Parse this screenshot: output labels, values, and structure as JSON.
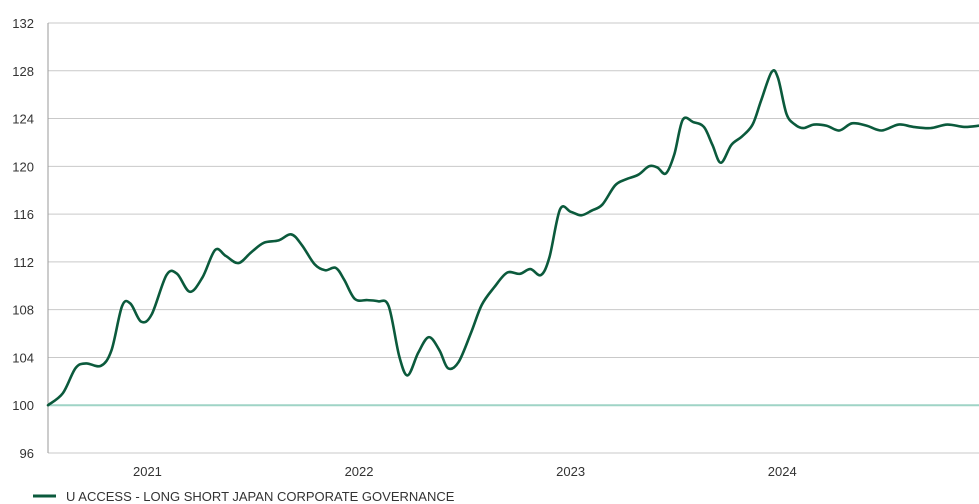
{
  "chart_data": {
    "type": "line",
    "title": "",
    "xlabel": "",
    "ylabel": "",
    "ylim": [
      96,
      132
    ],
    "y_ticks": [
      96,
      100,
      104,
      108,
      112,
      116,
      120,
      124,
      128,
      132
    ],
    "x_range": [
      2020.53,
      2024.93
    ],
    "x_ticks": [
      {
        "label": "2021",
        "value": 2021
      },
      {
        "label": "2022",
        "value": 2022
      },
      {
        "label": "2023",
        "value": 2023
      },
      {
        "label": "2024",
        "value": 2024
      }
    ],
    "grid": "horizontal",
    "legend_position": "bottom-left",
    "baseline": {
      "value": 100,
      "color": "#9fd4c6"
    },
    "series": [
      {
        "name": "U ACCESS - LONG SHORT JAPAN CORPORATE GOVERNANCE",
        "color": "#0b5a3c",
        "points": [
          [
            2020.53,
            100.0
          ],
          [
            2020.6,
            101.0
          ],
          [
            2020.66,
            103.1
          ],
          [
            2020.71,
            103.5
          ],
          [
            2020.78,
            103.3
          ],
          [
            2020.83,
            104.6
          ],
          [
            2020.88,
            108.3
          ],
          [
            2020.92,
            108.5
          ],
          [
            2020.97,
            107.0
          ],
          [
            2021.02,
            107.6
          ],
          [
            2021.09,
            110.9
          ],
          [
            2021.14,
            111.0
          ],
          [
            2021.2,
            109.5
          ],
          [
            2021.26,
            110.7
          ],
          [
            2021.32,
            113.0
          ],
          [
            2021.37,
            112.5
          ],
          [
            2021.43,
            111.9
          ],
          [
            2021.49,
            112.8
          ],
          [
            2021.55,
            113.6
          ],
          [
            2021.62,
            113.8
          ],
          [
            2021.68,
            114.3
          ],
          [
            2021.73,
            113.4
          ],
          [
            2021.79,
            111.8
          ],
          [
            2021.84,
            111.3
          ],
          [
            2021.89,
            111.5
          ],
          [
            2021.93,
            110.5
          ],
          [
            2021.98,
            108.9
          ],
          [
            2022.04,
            108.8
          ],
          [
            2022.09,
            108.7
          ],
          [
            2022.14,
            108.3
          ],
          [
            2022.19,
            104.1
          ],
          [
            2022.23,
            102.5
          ],
          [
            2022.28,
            104.4
          ],
          [
            2022.33,
            105.7
          ],
          [
            2022.38,
            104.6
          ],
          [
            2022.42,
            103.1
          ],
          [
            2022.47,
            103.6
          ],
          [
            2022.53,
            106.1
          ],
          [
            2022.58,
            108.4
          ],
          [
            2022.64,
            109.9
          ],
          [
            2022.7,
            111.1
          ],
          [
            2022.76,
            111.0
          ],
          [
            2022.81,
            111.4
          ],
          [
            2022.86,
            110.9
          ],
          [
            2022.9,
            112.4
          ],
          [
            2022.95,
            116.4
          ],
          [
            2023.0,
            116.2
          ],
          [
            2023.05,
            115.9
          ],
          [
            2023.1,
            116.3
          ],
          [
            2023.15,
            116.8
          ],
          [
            2023.21,
            118.4
          ],
          [
            2023.26,
            118.9
          ],
          [
            2023.32,
            119.3
          ],
          [
            2023.37,
            120.0
          ],
          [
            2023.41,
            119.9
          ],
          [
            2023.45,
            119.4
          ],
          [
            2023.49,
            121.0
          ],
          [
            2023.53,
            123.9
          ],
          [
            2023.58,
            123.7
          ],
          [
            2023.63,
            123.3
          ],
          [
            2023.67,
            121.8
          ],
          [
            2023.71,
            120.3
          ],
          [
            2023.76,
            121.8
          ],
          [
            2023.81,
            122.5
          ],
          [
            2023.86,
            123.5
          ],
          [
            2023.9,
            125.5
          ],
          [
            2023.95,
            127.9
          ],
          [
            2023.98,
            127.4
          ],
          [
            2024.02,
            124.4
          ],
          [
            2024.06,
            123.5
          ],
          [
            2024.1,
            123.2
          ],
          [
            2024.15,
            123.5
          ],
          [
            2024.21,
            123.4
          ],
          [
            2024.27,
            123.0
          ],
          [
            2024.33,
            123.6
          ],
          [
            2024.4,
            123.4
          ],
          [
            2024.47,
            123.0
          ],
          [
            2024.55,
            123.5
          ],
          [
            2024.62,
            123.3
          ],
          [
            2024.7,
            123.2
          ],
          [
            2024.78,
            123.5
          ],
          [
            2024.86,
            123.3
          ],
          [
            2024.93,
            123.4
          ]
        ]
      }
    ]
  }
}
